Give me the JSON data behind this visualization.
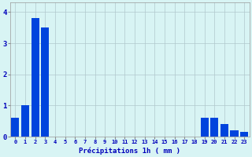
{
  "hours": [
    0,
    1,
    2,
    3,
    4,
    5,
    6,
    7,
    8,
    9,
    10,
    11,
    12,
    13,
    14,
    15,
    16,
    17,
    18,
    19,
    20,
    21,
    22,
    23
  ],
  "values": [
    0.6,
    1.0,
    3.8,
    3.5,
    0,
    0,
    0,
    0,
    0,
    0,
    0,
    0,
    0,
    0,
    0,
    0,
    0,
    0,
    0,
    0.6,
    0.6,
    0.4,
    0.2,
    0.15
  ],
  "bar_color": "#0044dd",
  "background_color": "#d8f4f4",
  "grid_color": "#b0c8cc",
  "xlabel": "Précipitations 1h ( mm )",
  "xlabel_color": "#0000bb",
  "tick_color": "#0000bb",
  "ylabel_ticks": [
    0,
    1,
    2,
    3,
    4
  ],
  "ylim": [
    0,
    4.3
  ],
  "xlim": [
    -0.5,
    23.5
  ],
  "figsize": [
    3.2,
    2.0
  ],
  "dpi": 100
}
